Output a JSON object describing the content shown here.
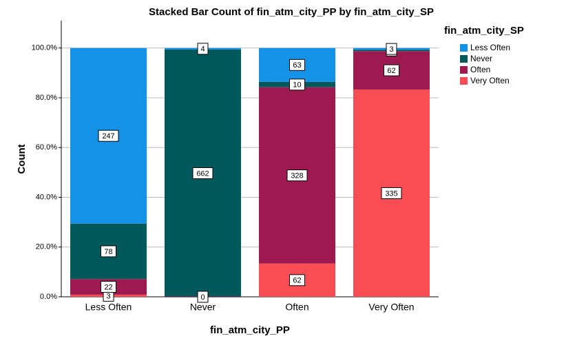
{
  "chart_data": {
    "type": "stacked_percent_bar",
    "title": "Stacked Bar Count of fin_atm_city_PP by fin_atm_city_SP",
    "x_label": "fin_atm_city_PP",
    "y_label": "Count",
    "legend_title": "fin_atm_city_SP",
    "legend": "right",
    "categories": [
      "Less Often",
      "Never",
      "Often",
      "Very Often"
    ],
    "series": [
      {
        "name": "Less Often",
        "color": "#1492e6",
        "values": [
          247,
          4,
          63,
          3
        ]
      },
      {
        "name": "Never",
        "color": "#01595b",
        "values": [
          78,
          662,
          10,
          2
        ]
      },
      {
        "name": "Often",
        "color": "#9d1a50",
        "values": [
          22,
          0,
          328,
          62
        ]
      },
      {
        "name": "Very Often",
        "color": "#f94d56",
        "values": [
          3,
          null,
          62,
          335
        ]
      }
    ],
    "ylim": [
      0,
      111
    ],
    "yticks": [
      {
        "value": 0,
        "label": "0.0%"
      },
      {
        "value": 20,
        "label": "20.0%"
      },
      {
        "value": 40,
        "label": "40.0%"
      },
      {
        "value": 60,
        "label": "60.0%"
      },
      {
        "value": 80,
        "label": "80.0%"
      },
      {
        "value": 100,
        "label": "100.0%"
      }
    ],
    "grid": true
  }
}
